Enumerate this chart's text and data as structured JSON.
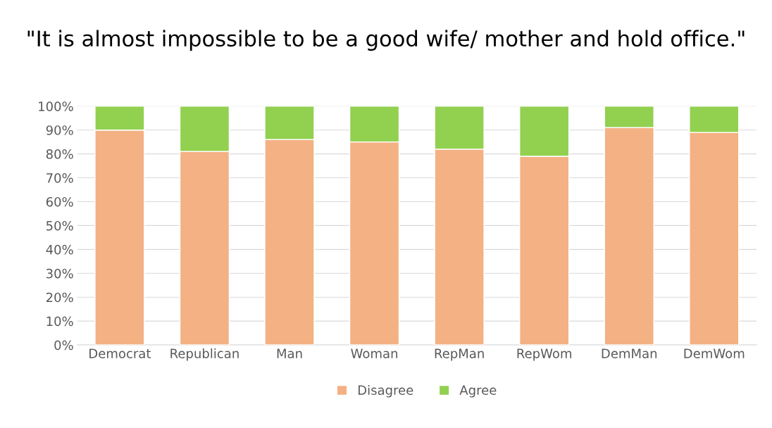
{
  "chart_data": {
    "type": "bar",
    "title": "\"It is almost impossible to be a good wife/ mother and hold office.\"",
    "categories": [
      "Democrat",
      "Republican",
      "Man",
      "Woman",
      "RepMan",
      "RepWom",
      "DemMan",
      "DemWom"
    ],
    "stacked": true,
    "series": [
      {
        "name": "Disagree",
        "color": "#f4b183",
        "values": [
          90,
          81,
          86,
          85,
          82,
          79,
          91,
          89
        ]
      },
      {
        "name": "Agree",
        "color": "#92d050",
        "values": [
          10,
          19,
          14,
          15,
          18,
          21,
          9,
          11
        ]
      }
    ],
    "ylim": [
      0,
      100
    ],
    "yticks": [
      {
        "value": 0,
        "label": "0%"
      },
      {
        "value": 10,
        "label": "10%"
      },
      {
        "value": 20,
        "label": "20%"
      },
      {
        "value": 30,
        "label": "30%"
      },
      {
        "value": 40,
        "label": "40%"
      },
      {
        "value": 50,
        "label": "50%"
      },
      {
        "value": 60,
        "label": "60%"
      },
      {
        "value": 70,
        "label": "70%"
      },
      {
        "value": 80,
        "label": "80%"
      },
      {
        "value": 90,
        "label": "90%"
      },
      {
        "value": 100,
        "label": "100%"
      }
    ],
    "grid": "y",
    "legend": "bottom"
  }
}
